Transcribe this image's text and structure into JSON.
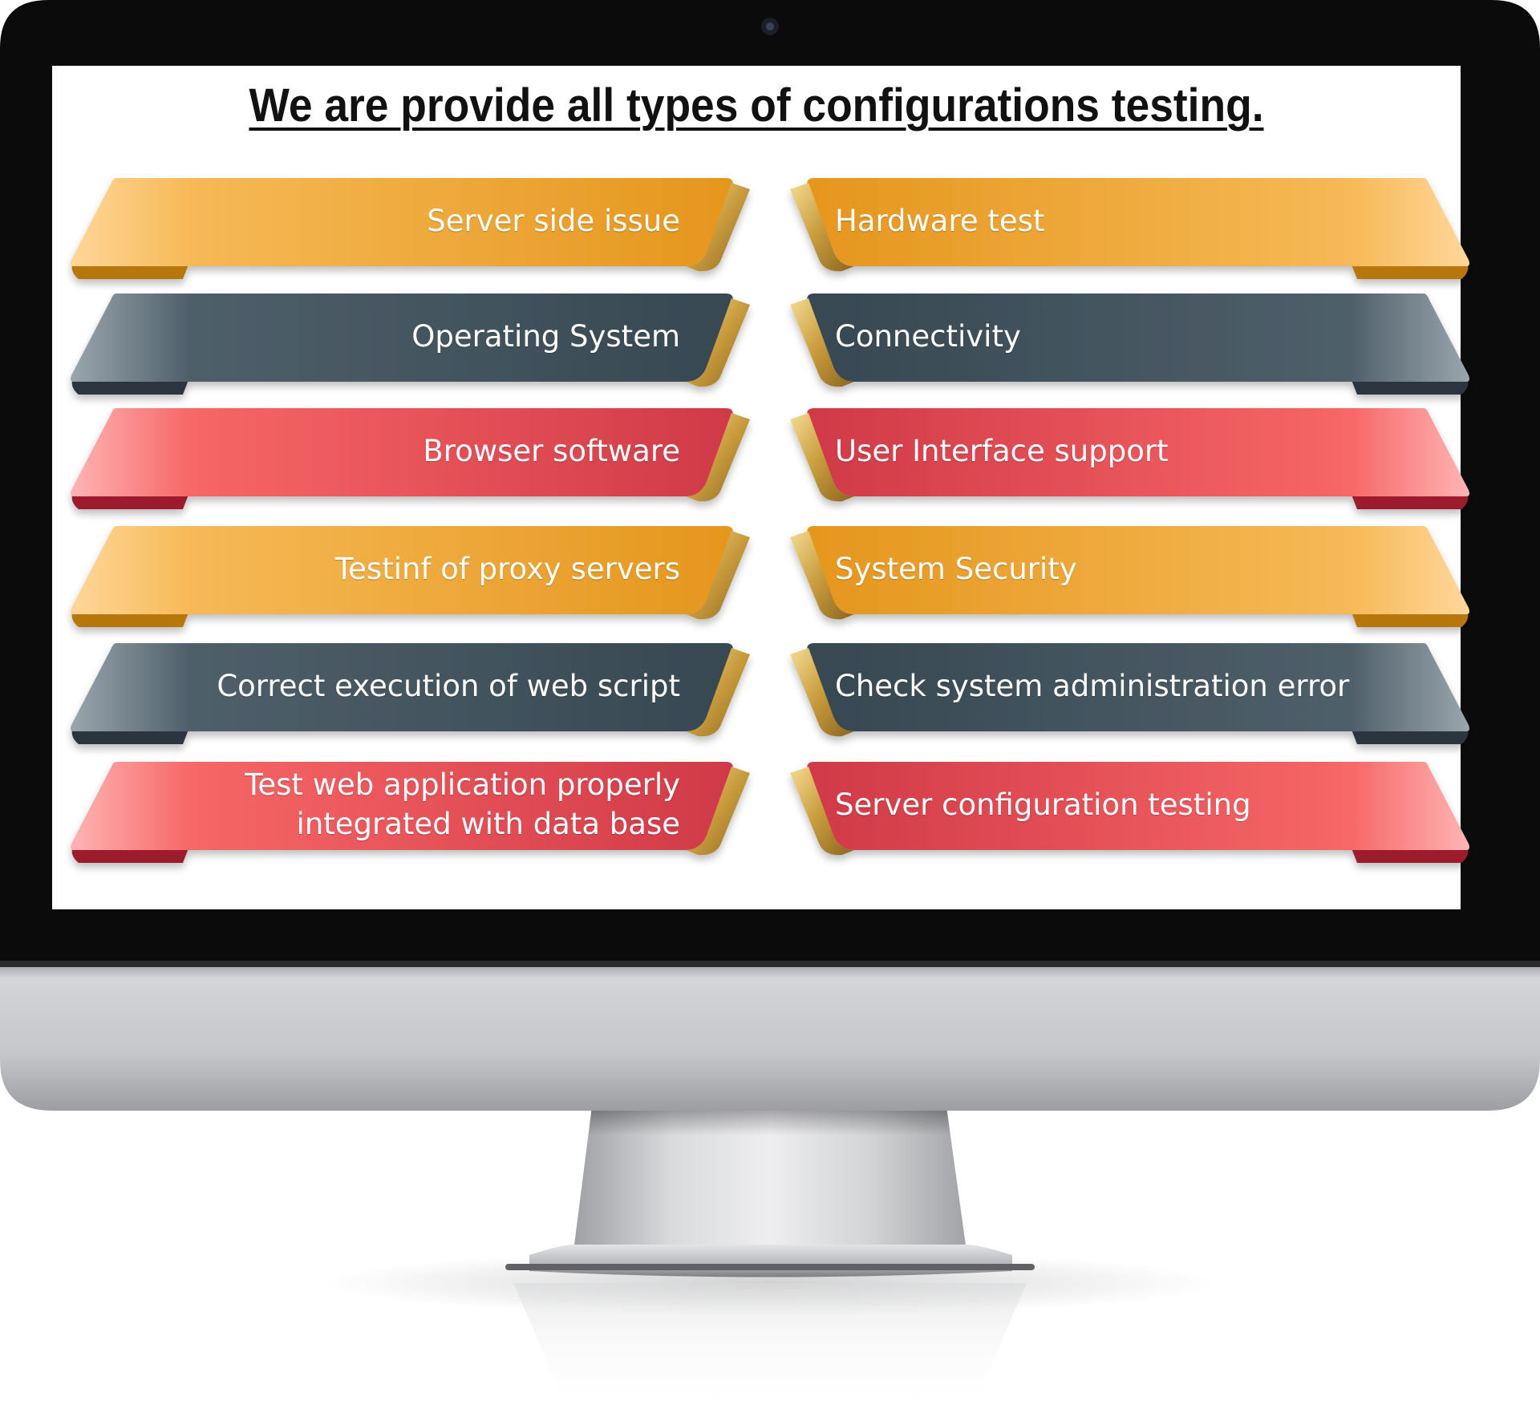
{
  "title": "We are provide all types of configurations testing.",
  "colors": {
    "orange_light": "#fbc26c",
    "orange_dark": "#e6961c",
    "slate_light": "#7d8b95",
    "slate_dark": "#3a4a55",
    "red_light": "#ff8c8c",
    "red_dark": "#cf3645",
    "gold_fold": "#c9a64a",
    "bezel": "#0c0c0c",
    "chin": "#c8c9cc",
    "stand": "#b9babd"
  },
  "rows": [
    {
      "theme": "orange",
      "left": [
        "Server side issue"
      ],
      "right": [
        "Hardware test"
      ]
    },
    {
      "theme": "slate",
      "left": [
        "Operating System"
      ],
      "right": [
        "Connectivity"
      ]
    },
    {
      "theme": "red",
      "left": [
        "Browser software"
      ],
      "right": [
        "User Interface support"
      ]
    },
    {
      "theme": "orange",
      "left": [
        "Testinf of proxy servers"
      ],
      "right": [
        "System Security"
      ]
    },
    {
      "theme": "slate",
      "left": [
        "Correct execution of web script"
      ],
      "right": [
        "Check system administration error"
      ]
    },
    {
      "theme": "red",
      "left": [
        "Test web application properly",
        "integrated with data base"
      ],
      "right": [
        "Server configuration testing"
      ]
    }
  ]
}
